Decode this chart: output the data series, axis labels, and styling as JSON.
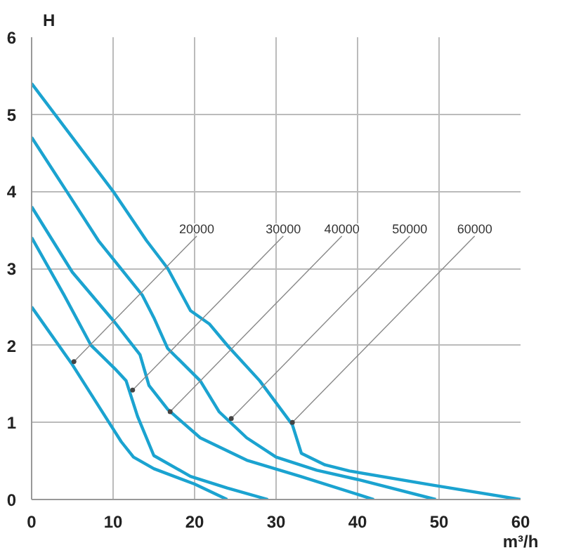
{
  "chart_data": {
    "type": "line",
    "xlabel": "m³/h",
    "ylabel": "H",
    "xlim": [
      0,
      60
    ],
    "ylim": [
      0,
      6
    ],
    "xticks": [
      0,
      10,
      20,
      30,
      40,
      50,
      60
    ],
    "yticks": [
      0,
      1,
      2,
      3,
      4,
      5,
      6
    ],
    "grid": true,
    "line_style": "solid",
    "series": [
      {
        "color": "#1ba3d0",
        "x": [
          0,
          5,
          9.5,
          11,
          12.5,
          15,
          20,
          24
        ],
        "values": [
          2.5,
          1.75,
          1.0,
          0.75,
          0.55,
          0.4,
          0.2,
          0
        ]
      },
      {
        "color": "#1ba3d0",
        "x": [
          0,
          4,
          7.3,
          10.2,
          11.6,
          13,
          15,
          19.5,
          24,
          29
        ],
        "values": [
          3.4,
          2.65,
          2.0,
          1.7,
          1.54,
          1.08,
          0.57,
          0.3,
          0.15,
          0
        ]
      },
      {
        "color": "#1ba3d0",
        "x": [
          0,
          5,
          10.2,
          13.3,
          14.4,
          16.7,
          20.7,
          26.4,
          33,
          42
        ],
        "values": [
          3.8,
          2.95,
          2.3,
          1.88,
          1.48,
          1.17,
          0.8,
          0.51,
          0.3,
          0
        ]
      },
      {
        "color": "#1ba3d0",
        "x": [
          0,
          4.3,
          8.2,
          13.6,
          15,
          16.7,
          20.7,
          23,
          26.4,
          30,
          35,
          40,
          49.6
        ],
        "values": [
          4.7,
          4.0,
          3.36,
          2.65,
          2.36,
          1.96,
          1.54,
          1.14,
          0.8,
          0.55,
          0.38,
          0.26,
          0
        ]
      },
      {
        "color": "#1ba3d0",
        "x": [
          0,
          10,
          14.1,
          16.7,
          19.5,
          21.8,
          24.1,
          28,
          32,
          33.1,
          36,
          39,
          49,
          60
        ],
        "values": [
          5.4,
          4.0,
          3.36,
          3.0,
          2.45,
          2.28,
          1.99,
          1.54,
          0.97,
          0.6,
          0.45,
          0.37,
          0.19,
          0
        ]
      }
    ],
    "annotations": [
      {
        "text": "20000",
        "x": 5.2,
        "y": 1.79
      },
      {
        "text": "30000",
        "x": 12.4,
        "y": 1.42
      },
      {
        "text": "40000",
        "x": 17,
        "y": 1.14
      },
      {
        "text": "50000",
        "x": 24.5,
        "y": 1.05
      },
      {
        "text": "60000",
        "x": 32,
        "y": 1.0
      }
    ]
  }
}
